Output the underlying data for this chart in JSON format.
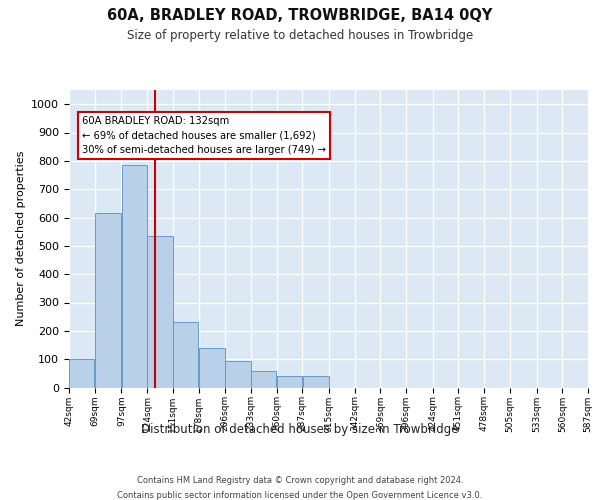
{
  "title": "60A, BRADLEY ROAD, TROWBRIDGE, BA14 0QY",
  "subtitle": "Size of property relative to detached houses in Trowbridge",
  "xlabel": "Distribution of detached houses by size in Trowbridge",
  "ylabel": "Number of detached properties",
  "footer_line1": "Contains HM Land Registry data © Crown copyright and database right 2024.",
  "footer_line2": "Contains public sector information licensed under the Open Government Licence v3.0.",
  "bar_color": "#b8d0e8",
  "bar_edge_color": "#6699cc",
  "background_color": "#dce9f5",
  "vline_x": 132,
  "vline_color": "#cc0000",
  "annotation_text": "60A BRADLEY ROAD: 132sqm\n← 69% of detached houses are smaller (1,692)\n30% of semi-detached houses are larger (749) →",
  "annotation_box_color": "#ffffff",
  "annotation_box_edge": "#cc0000",
  "ylim": [
    0,
    1050
  ],
  "yticks": [
    0,
    100,
    200,
    300,
    400,
    500,
    600,
    700,
    800,
    900,
    1000
  ],
  "bin_edges": [
    42,
    69,
    97,
    124,
    151,
    178,
    206,
    233,
    260,
    287,
    315,
    342,
    369,
    396,
    424,
    451,
    478,
    505,
    533,
    560,
    587
  ],
  "bar_heights": [
    100,
    615,
    785,
    535,
    230,
    140,
    95,
    60,
    40,
    40,
    0,
    0,
    0,
    0,
    0,
    0,
    0,
    0,
    0,
    0
  ],
  "tick_labels": [
    "42sqm",
    "69sqm",
    "97sqm",
    "124sqm",
    "151sqm",
    "178sqm",
    "206sqm",
    "233sqm",
    "260sqm",
    "287sqm",
    "315sqm",
    "342sqm",
    "369sqm",
    "396sqm",
    "424sqm",
    "451sqm",
    "478sqm",
    "505sqm",
    "533sqm",
    "560sqm",
    "587sqm"
  ]
}
